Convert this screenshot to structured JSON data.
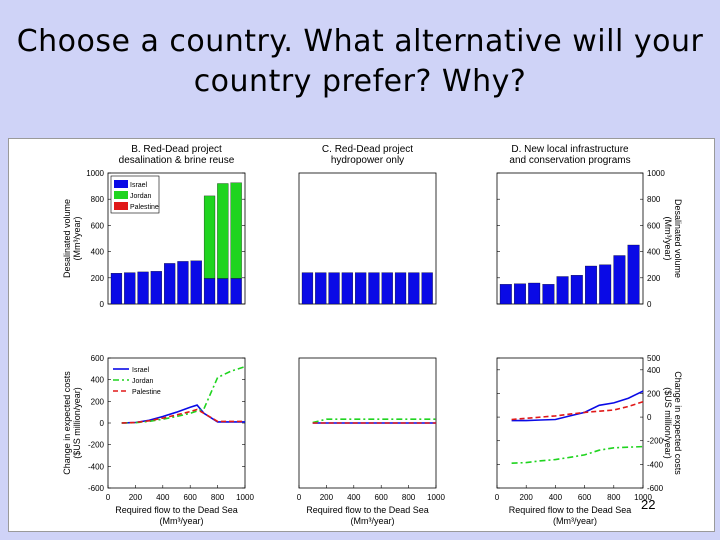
{
  "slide": {
    "title_line1": "Choose a country. What alternative will your",
    "title_line2": "country prefer? Why?",
    "page_number": "22"
  },
  "colors": {
    "israel": "#0a0ae6",
    "jordan": "#1fd41f",
    "palestine": "#e01818",
    "slide_bg": "#cfd3f7"
  },
  "chart_data": [
    {
      "type": "bar",
      "panel": "B-top",
      "title": [
        "B. Red-Dead project",
        "desalination & brine reuse"
      ],
      "ylabel": "Desalinated volume (Mm³/year)",
      "ylim": [
        0,
        1000
      ],
      "yticks": [
        "0",
        "200",
        "400",
        "600",
        "800",
        "1000"
      ],
      "legend": {
        "position": "top-left",
        "entries": [
          "Israel",
          "Jordan",
          "Palestine"
        ]
      },
      "series": [
        {
          "name": "Israel",
          "values": [
            235,
            240,
            245,
            250,
            310,
            325,
            330,
            195,
            195,
            195
          ]
        },
        {
          "name": "Jordan",
          "values": [
            0,
            0,
            0,
            0,
            0,
            0,
            0,
            630,
            725,
            730
          ]
        },
        {
          "name": "Palestine",
          "values": [
            0,
            0,
            0,
            0,
            0,
            0,
            0,
            0,
            0,
            0
          ]
        }
      ]
    },
    {
      "type": "bar",
      "panel": "C-top",
      "title": [
        "C. Red-Dead project",
        "hydropower only"
      ],
      "ylim": [
        0,
        1000
      ],
      "series": [
        {
          "name": "Israel",
          "values": [
            240,
            240,
            240,
            240,
            240,
            240,
            240,
            240,
            240,
            240
          ]
        }
      ]
    },
    {
      "type": "bar",
      "panel": "D-top",
      "title": [
        "D. New local infrastructure",
        "and conservation programs"
      ],
      "ylabel": "Desalinated volume (Mm³/year)",
      "ylim": [
        0,
        1000
      ],
      "yticks": [
        "0",
        "200",
        "400",
        "600",
        "800",
        "1000"
      ],
      "series": [
        {
          "name": "Israel",
          "values": [
            150,
            155,
            160,
            150,
            210,
            220,
            290,
            300,
            370,
            450
          ]
        }
      ]
    },
    {
      "type": "line",
      "panel": "B-bottom",
      "ylabel": "Change in expected costs ($US million/year)",
      "xlabel": "Required flow to the Dead Sea (Mm³/year)",
      "xlim": [
        0,
        1000
      ],
      "ylim": [
        -600,
        600
      ],
      "xticks": [
        "0",
        "200",
        "400",
        "600",
        "800",
        "1000"
      ],
      "yticks": [
        "-600",
        "-400",
        "-200",
        "0",
        "200",
        "400",
        "600"
      ],
      "legend": {
        "position": "top-left",
        "entries": [
          "Israel",
          "Jordan",
          "Palestine"
        ]
      },
      "x": [
        100,
        200,
        300,
        400,
        500,
        600,
        650,
        700,
        800,
        900,
        1000
      ],
      "series": [
        {
          "name": "Israel",
          "values": [
            0,
            5,
            25,
            60,
            100,
            145,
            165,
            90,
            10,
            10,
            10
          ]
        },
        {
          "name": "Jordan",
          "values": [
            0,
            3,
            15,
            35,
            60,
            90,
            110,
            130,
            420,
            480,
            520
          ]
        },
        {
          "name": "Palestine",
          "values": [
            0,
            5,
            20,
            45,
            75,
            105,
            125,
            90,
            15,
            15,
            15
          ]
        }
      ]
    },
    {
      "type": "line",
      "panel": "C-bottom",
      "xlabel": "Required flow to the Dead Sea (Mm³/year)",
      "xlim": [
        0,
        1000
      ],
      "ylim": [
        -600,
        600
      ],
      "xticks": [
        "0",
        "200",
        "400",
        "600",
        "800",
        "1000"
      ],
      "x": [
        100,
        200,
        300,
        400,
        500,
        600,
        700,
        800,
        900,
        1000
      ],
      "series": [
        {
          "name": "Israel",
          "values": [
            0,
            0,
            0,
            0,
            0,
            0,
            0,
            0,
            0,
            0
          ]
        },
        {
          "name": "Jordan",
          "values": [
            5,
            35,
            35,
            35,
            35,
            35,
            35,
            35,
            35,
            35
          ]
        },
        {
          "name": "Palestine",
          "values": [
            0,
            0,
            0,
            0,
            0,
            0,
            0,
            0,
            0,
            0
          ]
        }
      ]
    },
    {
      "type": "line",
      "panel": "D-bottom",
      "ylabel": "Change in expected costs ($US million/year)",
      "xlabel": "Required flow to the Dead Sea (Mm³/year)",
      "xlim": [
        0,
        1000
      ],
      "ylim": [
        -600,
        500
      ],
      "xticks": [
        "0",
        "200",
        "400",
        "600",
        "800",
        "1000"
      ],
      "yticks": [
        "-600",
        "-400",
        "-200",
        "0",
        "200",
        "400",
        "500"
      ],
      "x": [
        100,
        200,
        300,
        400,
        500,
        600,
        700,
        800,
        900,
        1000
      ],
      "series": [
        {
          "name": "Israel",
          "values": [
            -30,
            -30,
            -25,
            -20,
            10,
            40,
            100,
            120,
            160,
            220
          ]
        },
        {
          "name": "Jordan",
          "values": [
            -390,
            -385,
            -370,
            -360,
            -340,
            -320,
            -280,
            -260,
            -255,
            -250
          ]
        },
        {
          "name": "Palestine",
          "values": [
            -20,
            -10,
            0,
            10,
            25,
            40,
            50,
            60,
            90,
            130
          ]
        }
      ]
    }
  ]
}
